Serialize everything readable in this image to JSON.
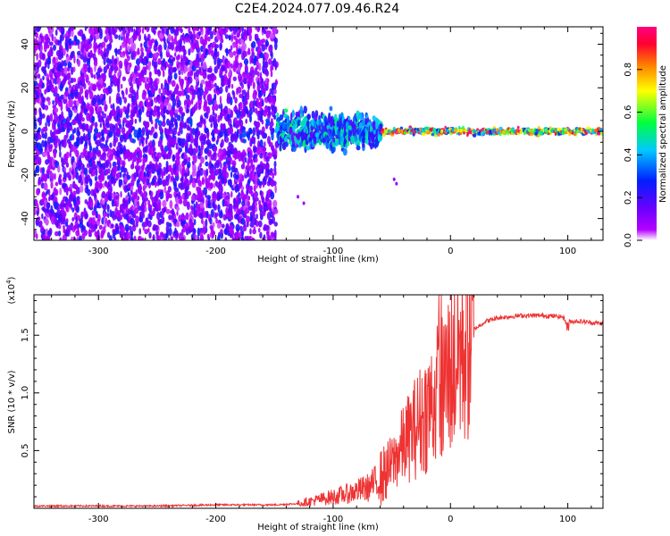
{
  "title": "C2E4.2024.077.09.46.R24",
  "chart_data": [
    {
      "type": "heatmap",
      "xlabel": "Height of straight line (km)",
      "ylabel": "Frequency (Hz)",
      "xlim": [
        -355,
        130
      ],
      "ylim": [
        -50,
        48
      ],
      "x_ticks": [
        -300,
        -200,
        -100,
        0,
        100
      ],
      "y_ticks": [
        -40,
        -20,
        0,
        20,
        40
      ],
      "colorbar": {
        "label": "Normalized spectral amplitude",
        "range": [
          0,
          1
        ],
        "ticks": [
          "0.0",
          "0.2",
          "0.4",
          "0.6",
          "0.8"
        ],
        "colors": [
          "#ffffff",
          "#b400ff",
          "#6a00ff",
          "#0020ff",
          "#00c8ff",
          "#00ff40",
          "#ffff00",
          "#ff8000",
          "#ff0030",
          "#ff0080"
        ]
      },
      "description_series": [
        {
          "x": [
            -355,
            -150
          ],
          "y_spread": 50,
          "amplitude": 0.2
        },
        {
          "x": [
            -150,
            -60
          ],
          "y_spread": 8,
          "amplitude": 0.5
        },
        {
          "x": [
            -60,
            130
          ],
          "y_spread": 2,
          "amplitude": 0.9
        }
      ],
      "grid": false
    },
    {
      "type": "line",
      "xlabel": "Height of straight line (km)",
      "ylabel": "SNR (10 * v/v)",
      "y_multiplier": "(x10^4)",
      "xlim": [
        -355,
        130
      ],
      "ylim": [
        0,
        1.85
      ],
      "x_ticks": [
        -300,
        -200,
        -100,
        0,
        100
      ],
      "y_ticks": [
        0.5,
        1.0,
        1.5
      ],
      "series": [
        {
          "color": "#ee3333",
          "x": [
            -355,
            -300,
            -250,
            -200,
            -150,
            -130,
            -120,
            -110,
            -100,
            -90,
            -80,
            -70,
            -60,
            -50,
            -40,
            -30,
            -20,
            -10,
            0,
            10,
            20,
            30,
            40,
            60,
            80,
            95,
            100,
            110,
            130
          ],
          "y": [
            0.02,
            0.02,
            0.02,
            0.03,
            0.03,
            0.04,
            0.06,
            0.08,
            0.1,
            0.12,
            0.15,
            0.18,
            0.25,
            0.38,
            0.55,
            0.7,
            0.85,
            1.0,
            1.2,
            1.4,
            1.55,
            1.62,
            1.65,
            1.67,
            1.67,
            1.66,
            1.62,
            1.62,
            1.6
          ]
        }
      ],
      "grid": false
    }
  ]
}
